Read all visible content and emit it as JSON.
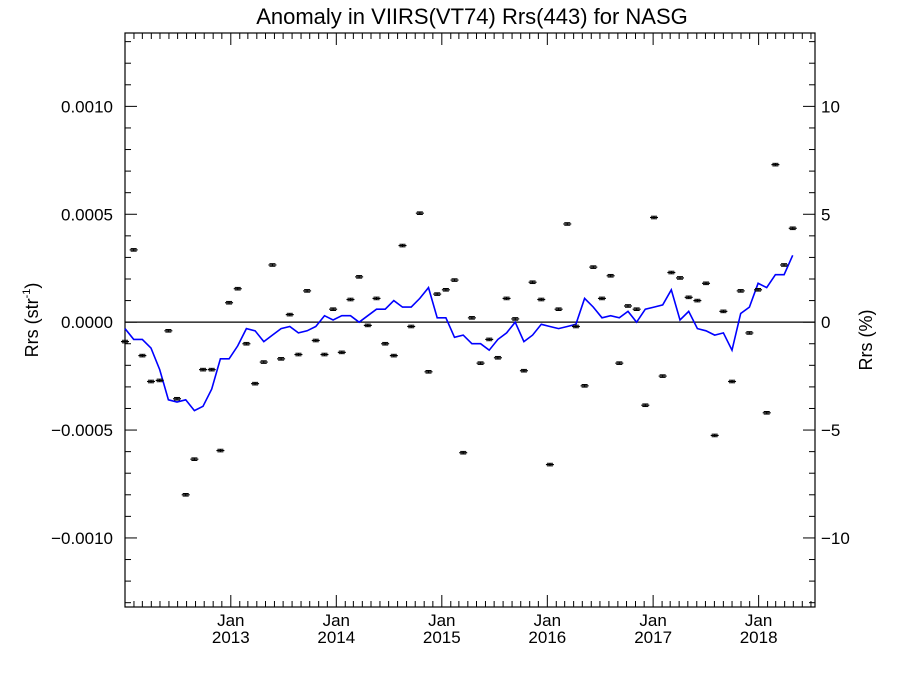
{
  "chart_data": {
    "type": "scatter",
    "title": "Anomaly in VIIRS(VT74) Rrs(443) for NASG",
    "ylabel": "Rrs (str",
    "ylabel_superscript": "-1",
    "ylabel_close": ")",
    "y2label": "Rrs (%)",
    "xlabel": "",
    "ylim": [
      -0.00132,
      0.00134
    ],
    "y2lim": [
      -13.2,
      13.4
    ],
    "xlim": [
      "2012-01-01",
      "2018-07-15"
    ],
    "grid": false,
    "legend": "none",
    "y_ticks": [
      "−0.0010",
      "−0.0005",
      "0.0000",
      "0.0005",
      "0.0010"
    ],
    "y_tick_values": [
      -0.001,
      -0.0005,
      0,
      0.0005,
      0.001
    ],
    "y2_ticks": [
      "−10",
      "−5",
      "0",
      "5",
      "10"
    ],
    "y2_tick_values": [
      -10,
      -5,
      0,
      5,
      10
    ],
    "x_ticks": [
      {
        "date": "2013-01-01",
        "month": "Jan",
        "year": "2013"
      },
      {
        "date": "2014-01-01",
        "month": "Jan",
        "year": "2014"
      },
      {
        "date": "2015-01-01",
        "month": "Jan",
        "year": "2015"
      },
      {
        "date": "2016-01-01",
        "month": "Jan",
        "year": "2016"
      },
      {
        "date": "2017-01-01",
        "month": "Jan",
        "year": "2017"
      },
      {
        "date": "2018-01-01",
        "month": "Jan",
        "year": "2018"
      }
    ],
    "colors": {
      "points": "#000000",
      "line": "#0000ff",
      "zero_line": "#000000"
    },
    "series": [
      {
        "type": "errorbar-points",
        "error": 6e-06,
        "points": [
          [
            "2012-01-01",
            -9e-05
          ],
          [
            "2012-01-31",
            0.000335
          ],
          [
            "2012-03-01",
            -0.000155
          ],
          [
            "2012-03-31",
            -0.000275
          ],
          [
            "2012-04-30",
            -0.00027
          ],
          [
            "2012-05-30",
            -4e-05
          ],
          [
            "2012-06-29",
            -0.000355
          ],
          [
            "2012-07-29",
            -0.0008
          ],
          [
            "2012-08-28",
            -0.000635
          ],
          [
            "2012-09-27",
            -0.00022
          ],
          [
            "2012-10-27",
            -0.00022
          ],
          [
            "2012-11-26",
            -0.000595
          ],
          [
            "2012-12-26",
            9e-05
          ],
          [
            "2013-01-25",
            0.000155
          ],
          [
            "2013-02-24",
            -0.0001
          ],
          [
            "2013-03-26",
            -0.000285
          ],
          [
            "2013-04-25",
            -0.000185
          ],
          [
            "2013-05-25",
            0.000265
          ],
          [
            "2013-06-24",
            -0.00017
          ],
          [
            "2013-07-24",
            3.5e-05
          ],
          [
            "2013-08-23",
            -0.00015
          ],
          [
            "2013-09-22",
            0.000145
          ],
          [
            "2013-10-22",
            -8.5e-05
          ],
          [
            "2013-11-21",
            -0.00015
          ],
          [
            "2013-12-21",
            6e-05
          ],
          [
            "2014-01-20",
            -0.00014
          ],
          [
            "2014-02-19",
            0.000105
          ],
          [
            "2014-03-21",
            0.00021
          ],
          [
            "2014-04-20",
            -1.5e-05
          ],
          [
            "2014-05-20",
            0.00011
          ],
          [
            "2014-06-19",
            -0.0001
          ],
          [
            "2014-07-19",
            -0.000155
          ],
          [
            "2014-08-18",
            0.000355
          ],
          [
            "2014-09-17",
            -2e-05
          ],
          [
            "2014-10-17",
            0.000505
          ],
          [
            "2014-11-16",
            -0.00023
          ],
          [
            "2014-12-16",
            0.00013
          ],
          [
            "2015-01-15",
            0.00015
          ],
          [
            "2015-02-14",
            0.000195
          ],
          [
            "2015-03-16",
            -0.000605
          ],
          [
            "2015-04-15",
            2e-05
          ],
          [
            "2015-05-15",
            -0.00019
          ],
          [
            "2015-06-14",
            -8e-05
          ],
          [
            "2015-07-14",
            -0.000165
          ],
          [
            "2015-08-13",
            0.00011
          ],
          [
            "2015-09-12",
            1.5e-05
          ],
          [
            "2015-10-12",
            -0.000225
          ],
          [
            "2015-11-11",
            0.000185
          ],
          [
            "2015-12-11",
            0.000105
          ],
          [
            "2016-01-10",
            -0.00066
          ],
          [
            "2016-02-09",
            6e-05
          ],
          [
            "2016-03-10",
            0.000455
          ],
          [
            "2016-04-09",
            -2e-05
          ],
          [
            "2016-05-09",
            -0.000295
          ],
          [
            "2016-06-08",
            0.000255
          ],
          [
            "2016-07-08",
            0.00011
          ],
          [
            "2016-08-07",
            0.000215
          ],
          [
            "2016-09-06",
            -0.00019
          ],
          [
            "2016-10-06",
            7.5e-05
          ],
          [
            "2016-11-05",
            6e-05
          ],
          [
            "2016-12-05",
            -0.000385
          ],
          [
            "2017-01-04",
            0.000485
          ],
          [
            "2017-02-03",
            -0.00025
          ],
          [
            "2017-03-05",
            0.00023
          ],
          [
            "2017-04-04",
            0.000205
          ],
          [
            "2017-05-04",
            0.000115
          ],
          [
            "2017-06-03",
            0.0001
          ],
          [
            "2017-07-03",
            0.00018
          ],
          [
            "2017-08-02",
            -0.000525
          ],
          [
            "2017-09-01",
            5e-05
          ],
          [
            "2017-10-01",
            -0.000275
          ],
          [
            "2017-10-31",
            0.000145
          ],
          [
            "2017-11-30",
            -5e-05
          ],
          [
            "2017-12-30",
            0.00015
          ],
          [
            "2018-01-29",
            -0.00042
          ],
          [
            "2018-02-28",
            0.00073
          ],
          [
            "2018-03-30",
            0.000265
          ],
          [
            "2018-04-29",
            0.000435
          ]
        ]
      },
      {
        "type": "line",
        "points": [
          [
            "2012-01-01",
            -3e-05
          ],
          [
            "2012-01-31",
            -8e-05
          ],
          [
            "2012-03-01",
            -8e-05
          ],
          [
            "2012-03-31",
            -0.00012
          ],
          [
            "2012-04-30",
            -0.00022
          ],
          [
            "2012-05-30",
            -0.00036
          ],
          [
            "2012-06-29",
            -0.00037
          ],
          [
            "2012-07-29",
            -0.00036
          ],
          [
            "2012-08-28",
            -0.00041
          ],
          [
            "2012-09-27",
            -0.00039
          ],
          [
            "2012-10-27",
            -0.00031
          ],
          [
            "2012-11-26",
            -0.00017
          ],
          [
            "2012-12-26",
            -0.00017
          ],
          [
            "2013-01-25",
            -0.00011
          ],
          [
            "2013-02-24",
            -3e-05
          ],
          [
            "2013-03-26",
            -4e-05
          ],
          [
            "2013-04-25",
            -9e-05
          ],
          [
            "2013-05-25",
            -6e-05
          ],
          [
            "2013-06-24",
            -3e-05
          ],
          [
            "2013-07-24",
            -2e-05
          ],
          [
            "2013-08-23",
            -5e-05
          ],
          [
            "2013-09-22",
            -4e-05
          ],
          [
            "2013-10-22",
            -2e-05
          ],
          [
            "2013-11-21",
            3e-05
          ],
          [
            "2013-12-21",
            1e-05
          ],
          [
            "2014-01-20",
            3e-05
          ],
          [
            "2014-02-19",
            3e-05
          ],
          [
            "2014-03-21",
            0.0
          ],
          [
            "2014-04-20",
            3e-05
          ],
          [
            "2014-05-20",
            6e-05
          ],
          [
            "2014-06-19",
            6e-05
          ],
          [
            "2014-07-19",
            0.0001
          ],
          [
            "2014-08-18",
            7e-05
          ],
          [
            "2014-09-17",
            7e-05
          ],
          [
            "2014-10-17",
            0.00011
          ],
          [
            "2014-11-16",
            0.00016
          ],
          [
            "2014-12-16",
            2e-05
          ],
          [
            "2015-01-15",
            2e-05
          ],
          [
            "2015-02-14",
            -7e-05
          ],
          [
            "2015-03-16",
            -6e-05
          ],
          [
            "2015-04-15",
            -0.0001
          ],
          [
            "2015-05-15",
            -0.0001
          ],
          [
            "2015-06-14",
            -0.00013
          ],
          [
            "2015-07-14",
            -8e-05
          ],
          [
            "2015-08-13",
            -5e-05
          ],
          [
            "2015-09-12",
            0.0
          ],
          [
            "2015-10-12",
            -9e-05
          ],
          [
            "2015-11-11",
            -6e-05
          ],
          [
            "2015-12-11",
            -1e-05
          ],
          [
            "2016-01-10",
            -2e-05
          ],
          [
            "2016-02-09",
            -3e-05
          ],
          [
            "2016-03-10",
            -2e-05
          ],
          [
            "2016-04-09",
            -1e-05
          ],
          [
            "2016-05-09",
            0.00011
          ],
          [
            "2016-06-08",
            7e-05
          ],
          [
            "2016-07-08",
            2e-05
          ],
          [
            "2016-08-07",
            3e-05
          ],
          [
            "2016-09-06",
            2e-05
          ],
          [
            "2016-10-06",
            5e-05
          ],
          [
            "2016-11-05",
            0.0
          ],
          [
            "2016-12-05",
            6e-05
          ],
          [
            "2017-01-04",
            7e-05
          ],
          [
            "2017-02-03",
            8e-05
          ],
          [
            "2017-03-05",
            0.00015
          ],
          [
            "2017-04-04",
            1e-05
          ],
          [
            "2017-05-04",
            5e-05
          ],
          [
            "2017-06-03",
            -3e-05
          ],
          [
            "2017-07-03",
            -4e-05
          ],
          [
            "2017-08-02",
            -6e-05
          ],
          [
            "2017-09-01",
            -5e-05
          ],
          [
            "2017-10-01",
            -0.00013
          ],
          [
            "2017-10-31",
            4e-05
          ],
          [
            "2017-11-30",
            7e-05
          ],
          [
            "2017-12-30",
            0.00018
          ],
          [
            "2018-01-29",
            0.00016
          ],
          [
            "2018-02-28",
            0.00022
          ],
          [
            "2018-03-30",
            0.00022
          ],
          [
            "2018-04-29",
            0.00031
          ]
        ]
      }
    ]
  }
}
